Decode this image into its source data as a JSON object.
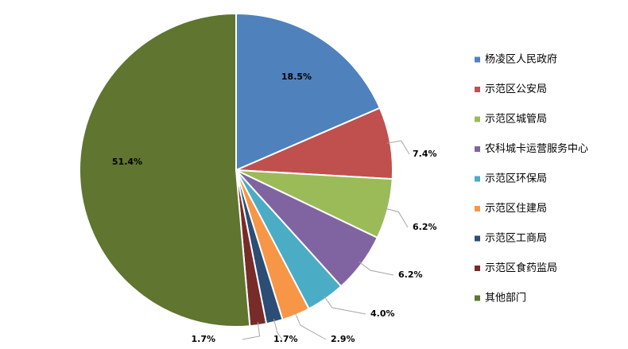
{
  "chart_data": {
    "type": "pie",
    "categories": [
      "杨凌区人民政府",
      "示范区公安局",
      "示范区城管局",
      "农科城卡运营服务中心",
      "示范区环保局",
      "示范区住建局",
      "示范区工商局",
      "示范区食药监局",
      "其他部门"
    ],
    "values": [
      18.5,
      7.4,
      6.2,
      6.2,
      4.0,
      2.9,
      1.7,
      1.7,
      51.4
    ],
    "labels": [
      "18.5%",
      "7.4%",
      "6.2%",
      "6.2%",
      "4.0%",
      "2.9%",
      "1.7%",
      "1.7%",
      "51.4%"
    ],
    "colors": [
      "#4f81bd",
      "#c0504d",
      "#9bbb59",
      "#8064a2",
      "#4bacc6",
      "#f79646",
      "#2c4d75",
      "#772c2a",
      "#5f7530"
    ],
    "start_angle": "12 o'clock",
    "direction": "clockwise",
    "legend_position": "right",
    "title": ""
  }
}
